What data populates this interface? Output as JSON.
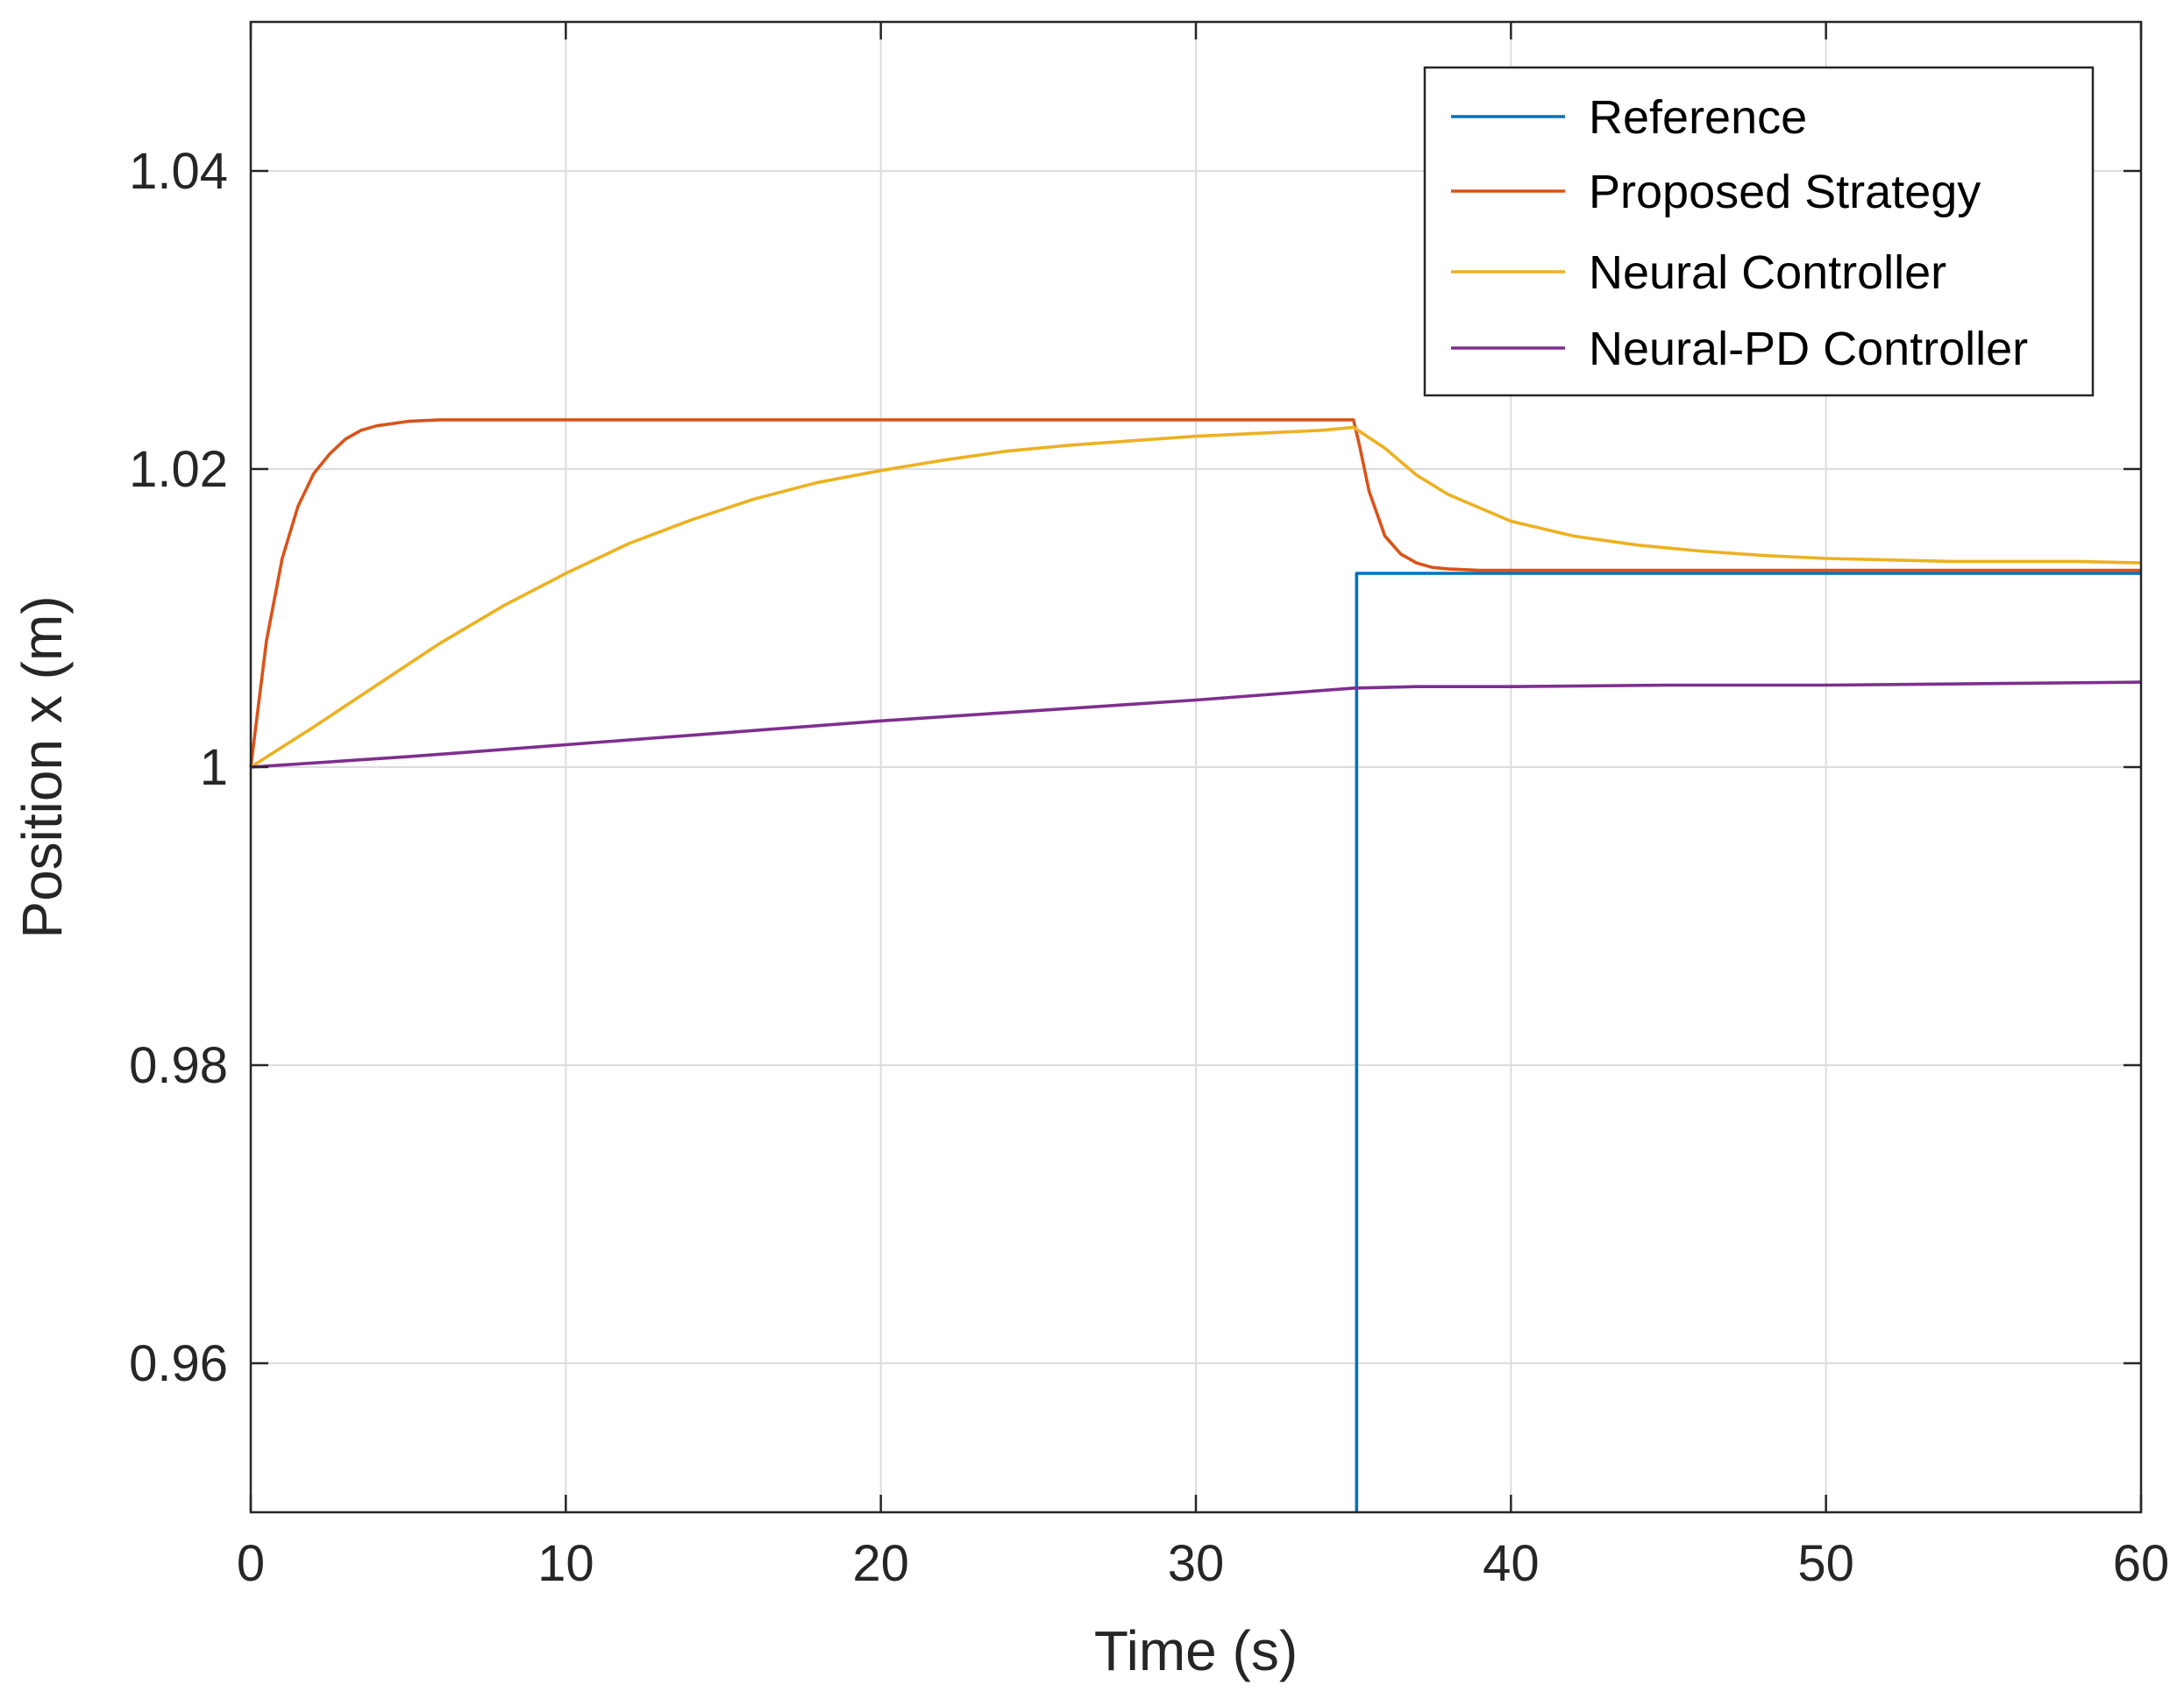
{
  "chart_data": {
    "type": "line",
    "title": "",
    "xlabel": "Time (s)",
    "ylabel": "Position x (m)",
    "xlim": [
      0,
      60
    ],
    "ylim": [
      0.95,
      1.05
    ],
    "xticks": [
      0,
      10,
      20,
      30,
      40,
      50,
      60
    ],
    "xtick_labels": [
      "0",
      "10",
      "20",
      "30",
      "40",
      "50",
      "60"
    ],
    "yticks": [
      0.96,
      0.98,
      1.0,
      1.02,
      1.04
    ],
    "ytick_labels": [
      "0.96",
      "0.98",
      "1",
      "1.02",
      "1.04"
    ],
    "grid": true,
    "legend_position": "top-right",
    "series": [
      {
        "name": "Reference",
        "color": "#0072BD",
        "x": [
          35.1,
          35.1,
          60
        ],
        "y": [
          0.95,
          1.013,
          1.013
        ]
      },
      {
        "name": "Proposed Strategy",
        "color": "#D95319",
        "x": [
          0,
          0.5,
          1,
          1.5,
          2,
          2.5,
          3,
          3.5,
          4,
          5,
          6,
          8,
          10,
          15,
          20,
          25,
          30,
          34,
          35,
          35.2,
          35.5,
          36,
          36.5,
          37,
          37.5,
          38,
          39,
          40,
          45,
          50,
          55,
          60
        ],
        "y": [
          1.0,
          1.0085,
          1.014,
          1.0175,
          1.0197,
          1.021,
          1.022,
          1.0226,
          1.0229,
          1.0232,
          1.0233,
          1.0233,
          1.0233,
          1.0233,
          1.0233,
          1.0233,
          1.0233,
          1.0233,
          1.0233,
          1.0215,
          1.0185,
          1.0155,
          1.0143,
          1.0137,
          1.0134,
          1.0133,
          1.0132,
          1.0132,
          1.0132,
          1.0132,
          1.0132,
          1.0132
        ]
      },
      {
        "name": "Neural Controller",
        "color": "#EDB120",
        "x": [
          0,
          2,
          4,
          6,
          8,
          10,
          12,
          14,
          16,
          18,
          20,
          22,
          24,
          26,
          28,
          30,
          32,
          34,
          35,
          36,
          37,
          38,
          40,
          42,
          44,
          46,
          48,
          50,
          52,
          54,
          56,
          58,
          60
        ],
        "y": [
          1.0,
          1.0027,
          1.0055,
          1.0083,
          1.0108,
          1.013,
          1.015,
          1.0166,
          1.018,
          1.0191,
          1.0199,
          1.0206,
          1.0212,
          1.0216,
          1.0219,
          1.0222,
          1.0224,
          1.0226,
          1.0228,
          1.0214,
          1.0196,
          1.0183,
          1.0165,
          1.0155,
          1.0149,
          1.0145,
          1.0142,
          1.014,
          1.0139,
          1.0138,
          1.0138,
          1.0138,
          1.0137
        ]
      },
      {
        "name": "Neural-PD Controller",
        "color": "#7E2F8E",
        "x": [
          0,
          5,
          10,
          15,
          20,
          25,
          30,
          35,
          37,
          40,
          45,
          50,
          55,
          60
        ],
        "y": [
          1.0,
          1.0007,
          1.0015,
          1.0023,
          1.0031,
          1.0038,
          1.0045,
          1.0053,
          1.0054,
          1.0054,
          1.0055,
          1.0055,
          1.0056,
          1.0057
        ]
      }
    ]
  }
}
